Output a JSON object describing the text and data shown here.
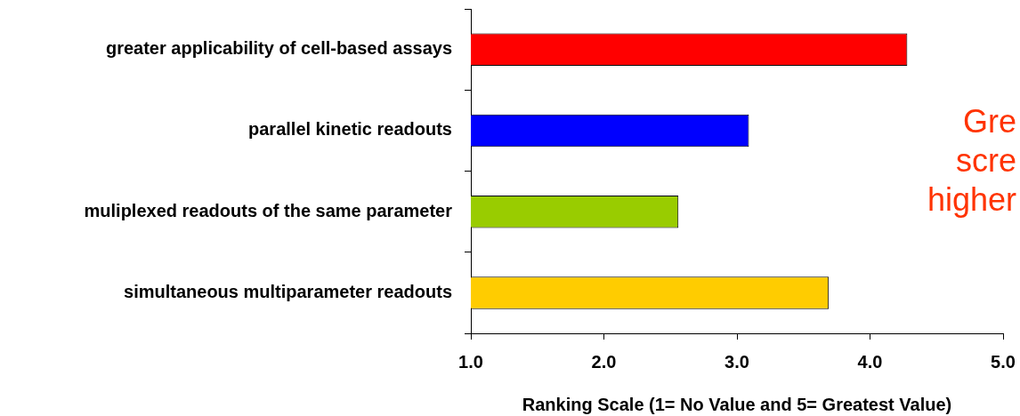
{
  "chart_data": {
    "type": "bar",
    "orientation": "horizontal",
    "xlabel": "Ranking Scale (1= No Value and 5= Greatest Value)",
    "categories": [
      "greater applicability of cell-based assays",
      "parallel kinetic readouts",
      "muliplexed readouts of the same parameter",
      "simultaneous multiparameter readouts"
    ],
    "values": [
      4.28,
      3.09,
      2.56,
      3.69
    ],
    "colors": [
      "#ff0000",
      "#0000ff",
      "#99cc00",
      "#ffcc00"
    ],
    "xlim": [
      1,
      5
    ],
    "xticks": [
      {
        "value": 1,
        "label": "1.0"
      },
      {
        "value": 2,
        "label": "2.0"
      },
      {
        "value": 3,
        "label": "3.0"
      },
      {
        "value": 4,
        "label": "4.0"
      },
      {
        "value": 5,
        "label": "5.0"
      }
    ],
    "annotations": [
      "Gre\nscre\nhigher"
    ]
  }
}
